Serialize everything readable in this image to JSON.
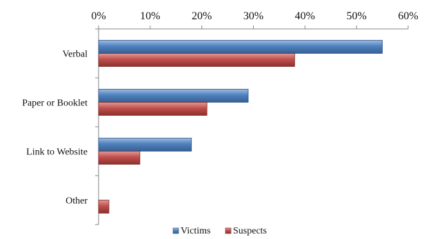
{
  "chart_data": {
    "type": "bar",
    "orientation": "horizontal",
    "x_axis_position": "top",
    "categories": [
      "Verbal",
      "Paper or Booklet",
      "Link to Website",
      "Other"
    ],
    "series": [
      {
        "name": "Victims",
        "color": "#4f81bd",
        "values": [
          55,
          29,
          18,
          0
        ]
      },
      {
        "name": "Suspects",
        "color": "#c0504d",
        "values": [
          38,
          21,
          8,
          2
        ]
      }
    ],
    "x_ticks": [
      "0%",
      "10%",
      "20%",
      "30%",
      "40%",
      "50%",
      "60%"
    ],
    "xlim": [
      0,
      60
    ],
    "grid": false,
    "legend_position": "bottom",
    "title": "",
    "xlabel": "",
    "ylabel": ""
  }
}
